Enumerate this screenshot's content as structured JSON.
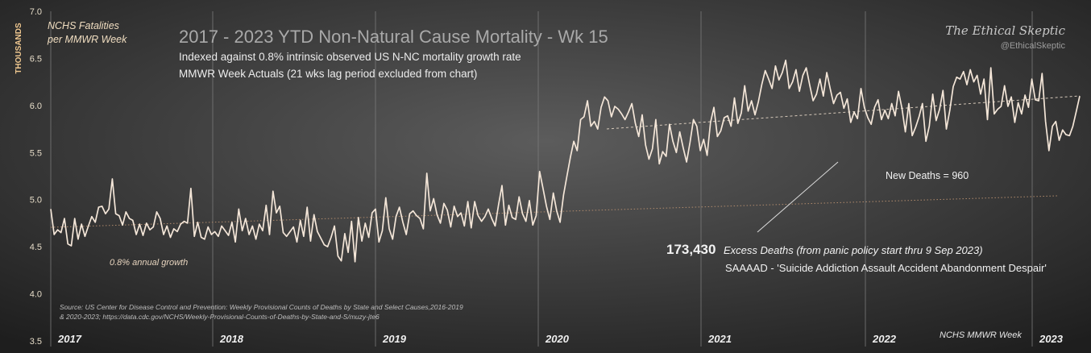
{
  "chart_data": {
    "type": "line",
    "title": "2017 - 2023 YTD Non-Natural Cause Mortality - Wk 15",
    "subtitle_lines": [
      "Indexed against 0.8% intrinsic observed US N-NC mortality growth rate",
      "MMWR Week Actuals (21 wks lag period excluded from chart)"
    ],
    "ylabel": "THOUSANDS",
    "series_label_lines": [
      "NCHS Fatalities",
      "per MMWR Week"
    ],
    "xlabel": "NCHS MMWR Week",
    "ylim": [
      3.5,
      7.0
    ],
    "y_ticks": [
      "3.5",
      "4.0",
      "4.5",
      "5.0",
      "5.5",
      "6.0",
      "6.5",
      "7.0"
    ],
    "x_year_labels": [
      "2017",
      "2018",
      "2019",
      "2020",
      "2021",
      "2022",
      "2023"
    ],
    "grid": false,
    "brand": {
      "name": "The Ethical Skeptic",
      "handle": "@EthicalSkeptic"
    },
    "annotations": {
      "growth": "0.8% annual growth",
      "new_deaths": "New Deaths =  960",
      "excess_value": "173,430",
      "excess_label": "Excess Deaths (from panic policy start thru 9 Sep 2023)",
      "saaaad": "SAAAAD - 'Suicide Addiction Assault Accident Abandonment Despair'",
      "source_line1": "Source: US Center for Disease Control and Prevention: Weekly Provisional Counts of Deaths by State and Select Causes,2016-2019",
      "source_line2": "& 2020-2023; https://data.cdc.gov/NCHS/Weekly-Provisional-Counts-of-Deaths-by-State-and-S/muzy-jte6"
    },
    "series": [
      {
        "values": [
          4.9,
          4.63,
          4.68,
          4.65,
          4.8,
          4.53,
          4.51,
          4.8,
          4.58,
          4.74,
          4.61,
          4.72,
          4.82,
          4.76,
          4.92,
          4.93,
          4.85,
          4.9,
          5.22,
          4.85,
          4.83,
          4.73,
          4.87,
          4.8,
          4.78,
          4.63,
          4.74,
          4.62,
          4.75,
          4.68,
          4.71,
          4.87,
          4.8,
          4.63,
          4.72,
          4.6,
          4.69,
          4.66,
          4.74,
          4.77,
          4.75,
          5.12,
          4.61,
          4.76,
          4.6,
          4.58,
          4.71,
          4.63,
          4.66,
          4.61,
          4.72,
          4.67,
          4.62,
          4.76,
          4.55,
          4.9,
          4.67,
          4.8,
          4.63,
          4.72,
          4.58,
          4.74,
          4.67,
          4.94,
          4.63,
          5.09,
          4.86,
          4.93,
          4.65,
          4.61,
          4.66,
          4.71,
          4.55,
          4.78,
          4.61,
          4.92,
          4.56,
          4.84,
          4.66,
          4.59,
          4.52,
          4.5,
          4.6,
          4.72,
          4.4,
          4.35,
          4.64,
          4.44,
          4.77,
          4.34,
          4.81,
          4.56,
          4.75,
          4.6,
          4.86,
          4.9,
          4.55,
          4.67,
          5.02,
          4.69,
          4.58,
          4.82,
          4.92,
          4.76,
          4.63,
          4.85,
          4.88,
          4.83,
          4.8,
          4.69,
          5.28,
          4.88,
          5.01,
          4.84,
          4.75,
          4.96,
          4.89,
          4.71,
          4.93,
          4.82,
          4.86,
          4.72,
          4.98,
          4.7,
          4.98,
          4.83,
          4.77,
          4.82,
          4.9,
          4.8,
          4.72,
          4.95,
          5.15,
          4.73,
          4.94,
          4.81,
          4.79,
          5.03,
          4.85,
          4.77,
          4.99,
          4.73,
          4.83,
          5.3,
          5.12,
          4.93,
          4.79,
          5.07,
          4.88,
          4.76,
          5.05,
          5.25,
          5.45,
          5.62,
          5.52,
          5.85,
          5.88,
          6.05,
          5.78,
          5.83,
          5.75,
          5.98,
          6.09,
          6.05,
          5.88,
          5.99,
          5.96,
          5.91,
          5.85,
          5.93,
          6.02,
          5.81,
          5.67,
          5.9,
          5.58,
          5.43,
          5.54,
          5.85,
          5.38,
          5.51,
          5.46,
          5.8,
          5.62,
          5.5,
          5.72,
          5.55,
          5.4,
          5.61,
          5.85,
          5.78,
          5.52,
          5.64,
          5.47,
          5.82,
          5.98,
          5.67,
          5.73,
          5.87,
          5.89,
          5.78,
          6.08,
          5.81,
          5.92,
          6.21,
          5.94,
          6.05,
          5.9,
          6.04,
          6.22,
          6.37,
          6.28,
          6.18,
          6.42,
          6.27,
          6.35,
          6.48,
          6.18,
          6.25,
          6.38,
          6.15,
          6.32,
          6.4,
          6.22,
          6.05,
          6.12,
          6.28,
          6.1,
          6.35,
          6.18,
          6.02,
          6.11,
          6.14,
          5.97,
          6.07,
          5.82,
          5.93,
          5.86,
          6.18,
          5.98,
          5.87,
          5.8,
          5.98,
          6.06,
          5.85,
          5.95,
          5.86,
          6.02,
          5.89,
          6.15,
          5.97,
          5.72,
          6.02,
          5.68,
          5.77,
          5.88,
          6.02,
          5.62,
          5.78,
          6.12,
          5.84,
          5.96,
          6.16,
          5.75,
          5.95,
          6.2,
          6.3,
          6.28,
          6.36,
          6.22,
          6.38,
          6.25,
          6.32,
          6.12,
          6.28,
          5.85,
          6.4,
          5.91,
          5.96,
          5.99,
          6.21,
          5.99,
          6.09,
          5.82,
          6.03,
          5.91,
          6.11,
          5.98,
          6.28,
          6.06,
          6.05,
          6.34,
          5.83,
          5.52,
          5.78,
          5.83,
          5.63,
          5.74,
          5.69,
          5.68,
          5.78,
          5.94,
          6.1
        ]
      }
    ],
    "colors": {
      "background_center": "#5c5c5c",
      "background_edge": "#1e1e1e",
      "line": "#f4e6d8",
      "trend_dashed": "#d6c9ba",
      "trend_dotted": "#b08a6c",
      "ylabel": "#f0c890",
      "muted_text": "#b4b4b4"
    }
  }
}
